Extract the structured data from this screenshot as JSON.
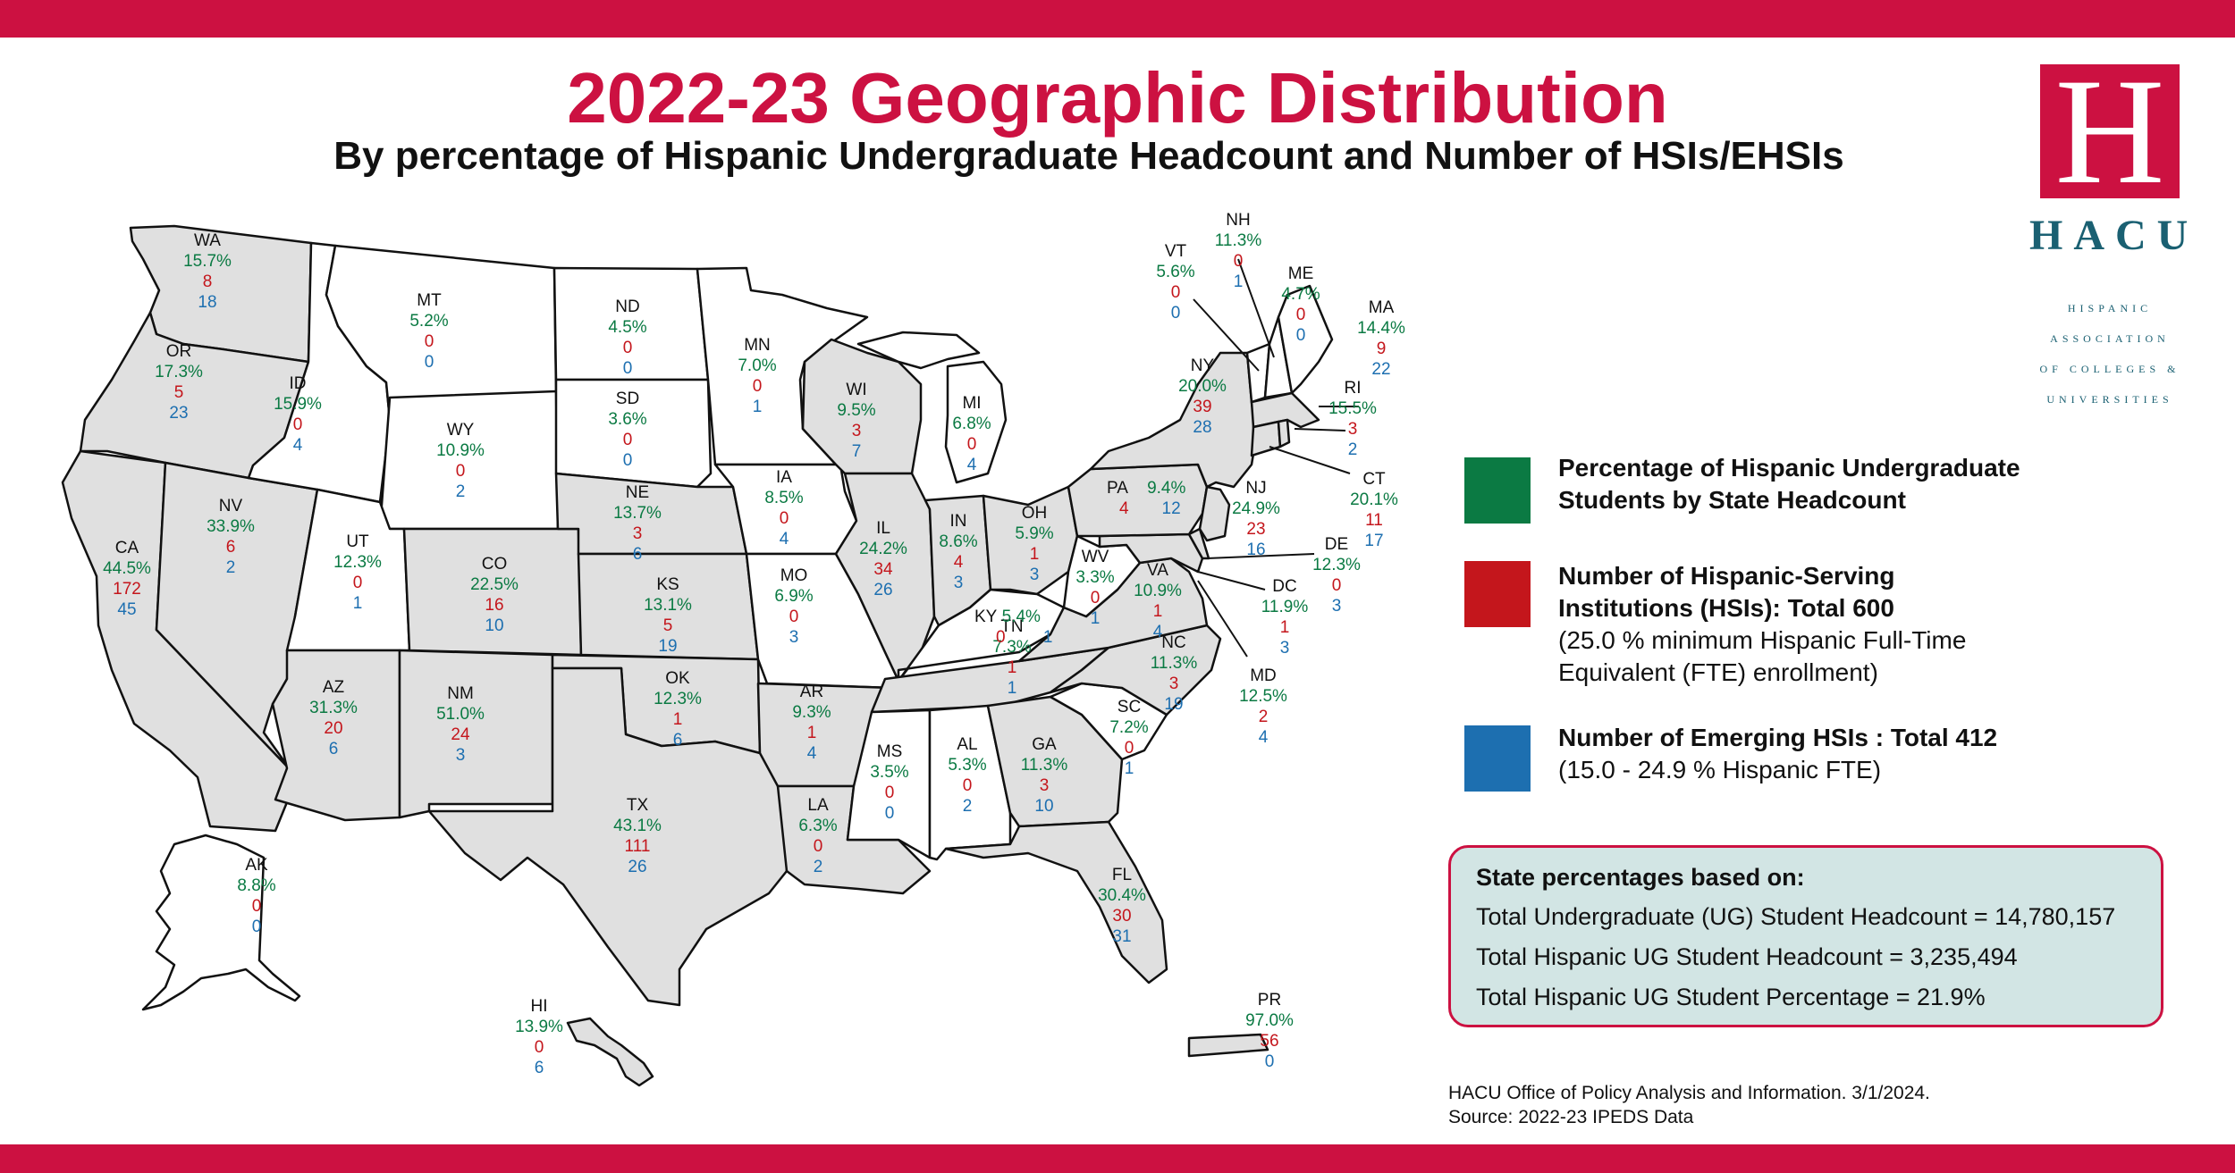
{
  "title": "2022-23 Geographic Distribution",
  "subtitle": "By percentage of Hispanic Undergraduate Headcount and Number of HSIs/EHSIs",
  "colors": {
    "brand": "#cc1141",
    "percent": "#0b7a43",
    "hsi": "#c4161c",
    "ehsi": "#1d6fb0",
    "state_fill": "#e0e0e0",
    "note_bg": "#d2e5e4",
    "logo_text": "#1a6072"
  },
  "logo": {
    "mark": "H",
    "name": "HACU",
    "line1": "HISPANIC",
    "line2": "ASSOCIATION",
    "line3": "OF COLLEGES &",
    "line4": "UNIVERSITIES"
  },
  "legend": {
    "green_bold": "Percentage of Hispanic Undergraduate Students by State Headcount",
    "red_bold": "Number of Hispanic-Serving Institutions (HSIs): Total 600",
    "red_note": "(25.0 % minimum Hispanic Full-Time Equivalent (FTE) enrollment)",
    "blue_bold": "Number of Emerging HSIs : Total 412",
    "blue_note": "(15.0 - 24.9 % Hispanic FTE)"
  },
  "note": {
    "heading": "State percentages based on:",
    "line1": "Total Undergraduate (UG) Student Headcount = 14,780,157",
    "line2": "Total Hispanic UG Student Headcount = 3,235,494",
    "line3": "Total Hispanic UG Student Percentage = 21.9%"
  },
  "source": {
    "line1": "HACU Office of Policy Analysis and Information. 3/1/2024.",
    "line2": "Source: 2022-23 IPEDS Data"
  },
  "states": [
    {
      "abbr": "WA",
      "pct": "15.7%",
      "hsi": "8",
      "ehsi": "18"
    },
    {
      "abbr": "OR",
      "pct": "17.3%",
      "hsi": "5",
      "ehsi": "23"
    },
    {
      "abbr": "CA",
      "pct": "44.5%",
      "hsi": "172",
      "ehsi": "45"
    },
    {
      "abbr": "NV",
      "pct": "33.9%",
      "hsi": "6",
      "ehsi": "2"
    },
    {
      "abbr": "ID",
      "pct": "15.9%",
      "hsi": "0",
      "ehsi": "4"
    },
    {
      "abbr": "MT",
      "pct": "5.2%",
      "hsi": "0",
      "ehsi": "0"
    },
    {
      "abbr": "WY",
      "pct": "10.9%",
      "hsi": "0",
      "ehsi": "2"
    },
    {
      "abbr": "UT",
      "pct": "12.3%",
      "hsi": "0",
      "ehsi": "1"
    },
    {
      "abbr": "AZ",
      "pct": "31.3%",
      "hsi": "20",
      "ehsi": "6"
    },
    {
      "abbr": "CO",
      "pct": "22.5%",
      "hsi": "16",
      "ehsi": "10"
    },
    {
      "abbr": "NM",
      "pct": "51.0%",
      "hsi": "24",
      "ehsi": "3"
    },
    {
      "abbr": "ND",
      "pct": "4.5%",
      "hsi": "0",
      "ehsi": "0"
    },
    {
      "abbr": "SD",
      "pct": "3.6%",
      "hsi": "0",
      "ehsi": "0"
    },
    {
      "abbr": "NE",
      "pct": "13.7%",
      "hsi": "3",
      "ehsi": "6"
    },
    {
      "abbr": "KS",
      "pct": "13.1%",
      "hsi": "5",
      "ehsi": "19"
    },
    {
      "abbr": "OK",
      "pct": "12.3%",
      "hsi": "1",
      "ehsi": "6"
    },
    {
      "abbr": "TX",
      "pct": "43.1%",
      "hsi": "111",
      "ehsi": "26"
    },
    {
      "abbr": "MN",
      "pct": "7.0%",
      "hsi": "0",
      "ehsi": "1"
    },
    {
      "abbr": "IA",
      "pct": "8.5%",
      "hsi": "0",
      "ehsi": "4"
    },
    {
      "abbr": "MO",
      "pct": "6.9%",
      "hsi": "0",
      "ehsi": "3"
    },
    {
      "abbr": "AR",
      "pct": "9.3%",
      "hsi": "1",
      "ehsi": "4"
    },
    {
      "abbr": "LA",
      "pct": "6.3%",
      "hsi": "0",
      "ehsi": "2"
    },
    {
      "abbr": "WI",
      "pct": "9.5%",
      "hsi": "3",
      "ehsi": "7"
    },
    {
      "abbr": "IL",
      "pct": "24.2%",
      "hsi": "34",
      "ehsi": "26"
    },
    {
      "abbr": "MI",
      "pct": "6.8%",
      "hsi": "0",
      "ehsi": "4"
    },
    {
      "abbr": "IN",
      "pct": "8.6%",
      "hsi": "4",
      "ehsi": "3"
    },
    {
      "abbr": "OH",
      "pct": "5.9%",
      "hsi": "1",
      "ehsi": "3"
    },
    {
      "abbr": "KY",
      "pct": "5.4%",
      "hsi": "0",
      "ehsi": "1"
    },
    {
      "abbr": "TN",
      "pct": "7.3%",
      "hsi": "1",
      "ehsi": "1"
    },
    {
      "abbr": "MS",
      "pct": "3.5%",
      "hsi": "0",
      "ehsi": "0"
    },
    {
      "abbr": "AL",
      "pct": "5.3%",
      "hsi": "0",
      "ehsi": "2"
    },
    {
      "abbr": "GA",
      "pct": "11.3%",
      "hsi": "3",
      "ehsi": "10"
    },
    {
      "abbr": "FL",
      "pct": "30.4%",
      "hsi": "30",
      "ehsi": "31"
    },
    {
      "abbr": "SC",
      "pct": "7.2%",
      "hsi": "0",
      "ehsi": "1"
    },
    {
      "abbr": "NC",
      "pct": "11.3%",
      "hsi": "3",
      "ehsi": "19"
    },
    {
      "abbr": "VA",
      "pct": "10.9%",
      "hsi": "1",
      "ehsi": "4"
    },
    {
      "abbr": "WV",
      "pct": "3.3%",
      "hsi": "0",
      "ehsi": "1"
    },
    {
      "abbr": "PA",
      "pct": "9.4%",
      "hsi": "4",
      "ehsi": "12"
    },
    {
      "abbr": "NY",
      "pct": "20.0%",
      "hsi": "39",
      "ehsi": "28"
    },
    {
      "abbr": "VT",
      "pct": "5.6%",
      "hsi": "0",
      "ehsi": "0"
    },
    {
      "abbr": "NH",
      "pct": "11.3%",
      "hsi": "0",
      "ehsi": "1"
    },
    {
      "abbr": "ME",
      "pct": "4.7%",
      "hsi": "0",
      "ehsi": "0"
    },
    {
      "abbr": "MA",
      "pct": "14.4%",
      "hsi": "9",
      "ehsi": "22"
    },
    {
      "abbr": "RI",
      "pct": "15.5%",
      "hsi": "3",
      "ehsi": "2"
    },
    {
      "abbr": "CT",
      "pct": "20.1%",
      "hsi": "11",
      "ehsi": "17"
    },
    {
      "abbr": "NJ",
      "pct": "24.9%",
      "hsi": "23",
      "ehsi": "16"
    },
    {
      "abbr": "DE",
      "pct": "12.3%",
      "hsi": "0",
      "ehsi": "3"
    },
    {
      "abbr": "DC",
      "pct": "11.9%",
      "hsi": "1",
      "ehsi": "3"
    },
    {
      "abbr": "MD",
      "pct": "12.5%",
      "hsi": "2",
      "ehsi": "4"
    },
    {
      "abbr": "AK",
      "pct": "8.8%",
      "hsi": "0",
      "ehsi": "0"
    },
    {
      "abbr": "HI",
      "pct": "13.9%",
      "hsi": "0",
      "ehsi": "6"
    },
    {
      "abbr": "PR",
      "pct": "97.0%",
      "hsi": "56",
      "ehsi": "0"
    }
  ]
}
